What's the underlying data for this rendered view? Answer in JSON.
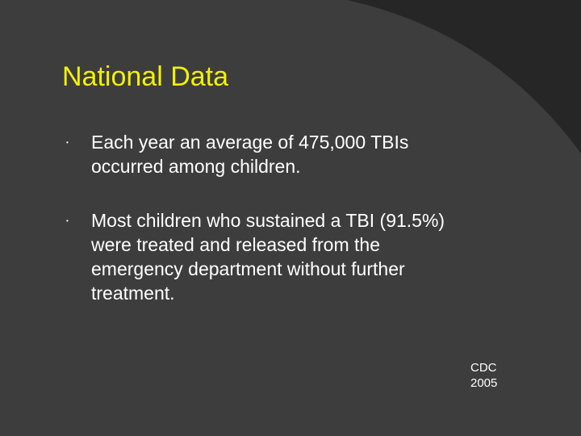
{
  "slide": {
    "title": "National Data",
    "bullet_marker": "•",
    "bullets": [
      "Each year an average of 475,000 TBIs\noccurred among children.",
      "Most children who sustained a TBI (91.5%)\nwere treated and released from the\nemergency department without further\ntreatment."
    ],
    "citation": "CDC\n2005"
  },
  "colors": {
    "background_outer": "#262626",
    "background_panel": "#3d3d3d",
    "title": "#f2f200",
    "body_text": "#ffffff",
    "marker": "#ffffff"
  }
}
